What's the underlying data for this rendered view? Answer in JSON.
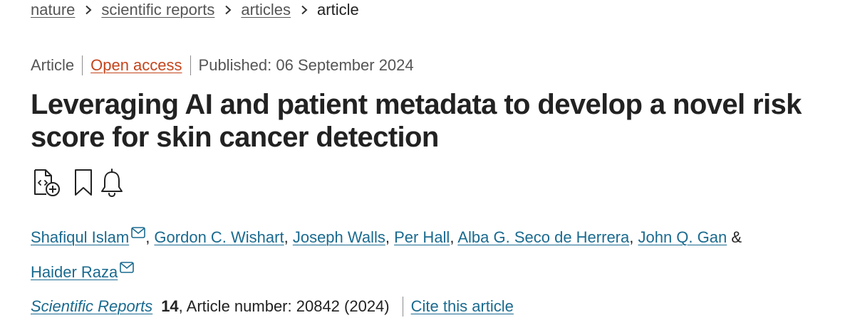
{
  "breadcrumb": {
    "items": [
      {
        "label": "nature"
      },
      {
        "label": "scientific reports"
      },
      {
        "label": "articles"
      }
    ],
    "current": "article"
  },
  "meta": {
    "type": "Article",
    "access": "Open access",
    "published": "Published: 06 September 2024"
  },
  "title": "Leveraging AI and patient metadata to develop a novel risk score for skin cancer detection",
  "icons": {
    "citation_manager": "file-code-plus-icon",
    "bookmark": "bookmark-icon",
    "alert": "bell-icon",
    "email": "envelope-icon"
  },
  "authors": {
    "list": [
      {
        "name": "Shafiqul Islam",
        "separator": ", "
      },
      {
        "name": "Gordon C. Wishart",
        "separator": ", "
      },
      {
        "name": "Joseph Walls",
        "separator": ", "
      },
      {
        "name": "Per Hall",
        "separator": ", "
      },
      {
        "name": "Alba G. Seco de Herrera",
        "separator": ", "
      },
      {
        "name": "John Q. Gan",
        "separator": " & "
      },
      {
        "name": "Haider Raza",
        "separator": ""
      }
    ]
  },
  "citation": {
    "journal": "Scientific Reports",
    "volume": "14",
    "details": ", Article number: 20842 (2024)",
    "cite_label": "Cite this article"
  },
  "colors": {
    "link": "#1a6a8f",
    "open_access": "#c4451c",
    "text": "#222222",
    "muted": "#555555"
  }
}
